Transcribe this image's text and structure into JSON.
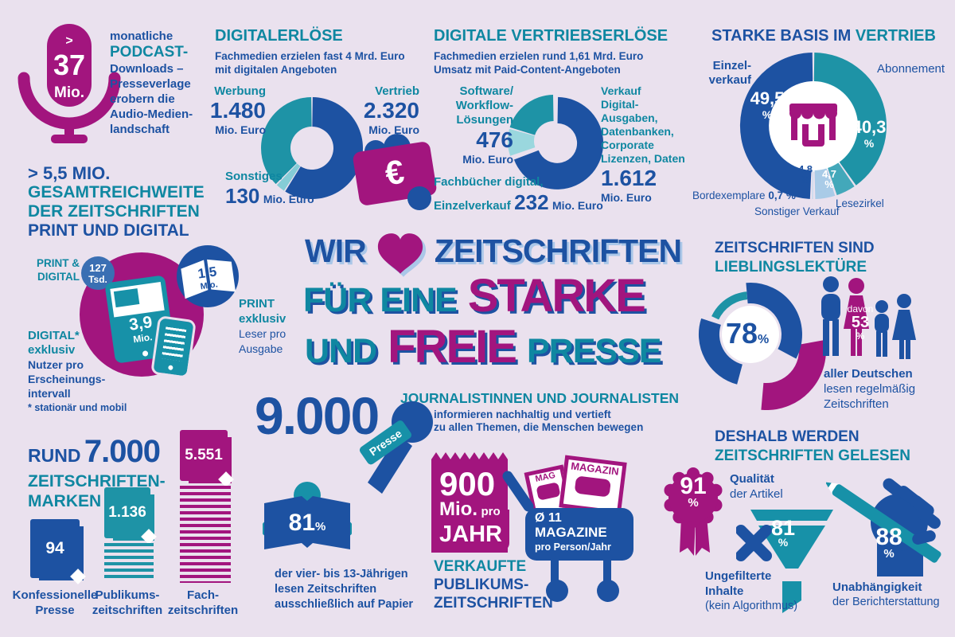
{
  "colors": {
    "blue": "#1d52a2",
    "teal": "#0f87a1",
    "chart_teal": "#1e93a6",
    "magenta": "#a2157e",
    "light_teal": "#85ccd6",
    "light_teal2": "#9ad7de",
    "pale_blue": "#a9cbe7",
    "mid_teal": "#43a8ba",
    "sliver_blue": "#c3d9ef",
    "bg": "#eae1ee",
    "shadow_light": "#abc7e8",
    "circle_blue": "#3a6fb3"
  },
  "podcast": {
    "gt": ">",
    "value": "37",
    "unit": "Mio.",
    "l1": "monatliche",
    "l2": "PODCAST-",
    "l3": "Downloads –",
    "l4": "Presseverlage",
    "l5": "erobern die",
    "l6": "Audio-Medien-",
    "l7": "landschaft"
  },
  "digitalerloese": {
    "heading": "DIGITALERLÖSE",
    "sub1": "Fachmedien erzielen fast 4 Mrd. Euro",
    "sub2": "mit digitalen Angeboten",
    "werbung_label": "Werbung",
    "werbung_value": "1.480",
    "werbung_unit": "Mio. Euro",
    "vertrieb_label": "Vertrieb",
    "vertrieb_value": "2.320",
    "vertrieb_unit": "Mio. Euro",
    "sonstiges_label": "Sonstiges",
    "sonstiges_value": "130",
    "sonstiges_unit": "Mio. Euro",
    "euro": "€"
  },
  "vertriebserloese": {
    "heading": "DIGITALE VERTRIEBSERLÖSE",
    "sub1": "Fachmedien erzielen rund 1,61 Mrd. Euro",
    "sub2": "Umsatz mit Paid-Content-Angeboten",
    "sw1": "Software/",
    "sw2": "Workflow-",
    "sw3": "Lösungen",
    "sw_value": "476",
    "sw_unit": "Mio. Euro",
    "vk1": "Verkauf",
    "vk2": "Digital-Ausgaben,",
    "vk3": "Datenbanken,",
    "vk4": "Corporate",
    "vk5": "Lizenzen, Daten",
    "vk_value": "1.612",
    "vk_unit": "Mio. Euro",
    "fach1": "Fachbücher digital,",
    "fach2": "Einzelverkauf",
    "fach_value": "232",
    "fach_unit": "Mio. Euro"
  },
  "basis": {
    "heading1": "STARKE BASIS IM",
    "heading2": "VERTRIEB",
    "einzel1": "Einzel-",
    "einzel2": "verkauf",
    "einzel_pct": "49,5",
    "abo_label": "Abonnement",
    "abo_pct": "40,3",
    "sonst_label": "Sonstiger Verkauf",
    "sonst_pct": "4,8",
    "lese_label": "Lesezirkel",
    "lese_pct": "4,7",
    "bord_label": "Bordexemplare",
    "bord_value": "0,7 %",
    "pct": "%"
  },
  "reichweite": {
    "h1": "> 5,5 MIO.",
    "h2": "GESAMTREICHWEITE",
    "h3": "DER ZEITSCHRIFTEN",
    "h4": "PRINT UND DIGITAL",
    "pd1": "PRINT &",
    "pd2": "DIGITAL",
    "pd_value": "127",
    "pd_unit": "Tsd.",
    "digital_value": "3,9",
    "digital_unit": "Mio.",
    "print_value": "1,5",
    "print_unit": "Mio.",
    "d1": "DIGITAL*",
    "d2": "exklusiv",
    "d3": "Nutzer pro",
    "d4": "Erscheinungs-",
    "d5": "intervall",
    "footnote": "* stationär und mobil",
    "p1": "PRINT",
    "p2": "exklusiv",
    "p3": "Leser pro",
    "p4": "Ausgabe"
  },
  "slogan": {
    "wir": "WIR",
    "zeitschriften": "ZEITSCHRIFTEN",
    "fuer_eine": "FÜR EINE",
    "starke": "STARKE",
    "und": "UND",
    "freie": "FREIE",
    "presse": "PRESSE"
  },
  "lieblings": {
    "h1": "ZEITSCHRIFTEN SIND",
    "h2": "LIEBLINGSLEKTÜRE",
    "pct": "78",
    "pct_sign": "%",
    "davon": "davon",
    "davon_value": "53",
    "davon_sign": "%",
    "t1": "aller Deutschen",
    "t2": "lesen regelmäßig",
    "t3": "Zeitschriften"
  },
  "marken": {
    "h_prefix": "RUND",
    "h_value": "7.000",
    "h2": "ZEITSCHRIFTEN-",
    "h3": "MARKEN",
    "items": [
      {
        "value": "94",
        "label1": "Konfessionelle",
        "label2": "Presse"
      },
      {
        "value": "1.136",
        "label1": "Publikums-",
        "label2": "zeitschriften"
      },
      {
        "value": "5.551",
        "label1": "Fach-",
        "label2": "zeitschriften"
      }
    ]
  },
  "journalisten": {
    "value": "9.000",
    "heading": "JOURNALISTINNEN UND JOURNALISTEN",
    "sub1": "informieren nachhaltig und vertieft",
    "sub2": "zu allen Themen, die Menschen bewegen",
    "flag": "Presse"
  },
  "kinder": {
    "pct": "81",
    "sign": "%",
    "t1": "der vier- bis 13-Jährigen",
    "t2": "lesen Zeitschriften",
    "t3": "ausschließlich auf Papier"
  },
  "verkauf": {
    "value": "900",
    "u1": "Mio.",
    "u2": "pro",
    "u3": "JAHR",
    "l1": "VERKAUFTE",
    "l2": "PUBLIKUMS-",
    "l3": "ZEITSCHRIFTEN",
    "cart1": "Ø 11",
    "cart2": "MAGAZINE",
    "cart3": "pro Person/Jahr",
    "mag1": "MAG",
    "mag2": "MAGAZIN"
  },
  "gruende": {
    "h1": "DESHALB WERDEN",
    "h2": "ZEITSCHRIFTEN GELESEN",
    "q_pct": "91",
    "q_sign": "%",
    "q1": "Qualität",
    "q2": "der Artikel",
    "u_pct": "81",
    "u_sign": "%",
    "u1": "Ungefilterte",
    "u2": "Inhalte",
    "u3": "(kein Algorithmus)",
    "i_pct": "88",
    "i_sign": "%",
    "i1": "Unabhängigkeit",
    "i2": "der Berichterstattung"
  },
  "chart_data": [
    {
      "id": "digitalerloese",
      "type": "pie",
      "title": "DIGITALERLÖSE",
      "unit": "Mio. Euro",
      "segments": [
        {
          "label": "Vertrieb",
          "value": 2320,
          "color": "#1d52a2"
        },
        {
          "label": "Sonstiges",
          "value": 130,
          "color": "#85ccd6"
        },
        {
          "label": "Werbung",
          "value": 1480,
          "color": "#1e93a6"
        }
      ]
    },
    {
      "id": "digitale-vertriebserloese",
      "type": "pie",
      "title": "DIGITALE VERTRIEBSERLÖSE",
      "unit": "Mio. Euro",
      "segments": [
        {
          "label": "Verkauf Digital-Ausgaben, Datenbanken, Corporate Lizenzen, Daten",
          "value": 1612,
          "color": "#1d52a2",
          "explode": 5
        },
        {
          "label": "Fachbücher digital, Einzelverkauf",
          "value": 232,
          "color": "#9ad7de"
        },
        {
          "label": "Software/Workflow-Lösungen",
          "value": 476,
          "color": "#1e93a6"
        }
      ]
    },
    {
      "id": "vertriebswege",
      "type": "pie",
      "title": "STARKE BASIS IM VERTRIEB",
      "unit": "%",
      "segments": [
        {
          "label": "Abonnement",
          "value": 40.3,
          "color": "#1e93a6"
        },
        {
          "label": "Lesezirkel",
          "value": 4.7,
          "color": "#43a8ba"
        },
        {
          "label": "Sonstiger Verkauf",
          "value": 4.8,
          "color": "#a9cbe7"
        },
        {
          "label": "Bordexemplare",
          "value": 0.7,
          "color": "#c3d9ef"
        },
        {
          "label": "Einzelverkauf",
          "value": 49.5,
          "color": "#1d52a2"
        }
      ]
    },
    {
      "id": "lieblingslektuere",
      "type": "donut-gauge",
      "value": 78,
      "unit": "%"
    },
    {
      "id": "zeitschriftenmarken",
      "type": "pictogram-bar",
      "title": "RUND 7.000 ZEITSCHRIFTEN-MARKEN",
      "categories": [
        "Konfessionelle Presse",
        "Publikumszeitschriften",
        "Fachzeitschriften"
      ],
      "values": [
        94,
        1136,
        5551
      ]
    }
  ]
}
